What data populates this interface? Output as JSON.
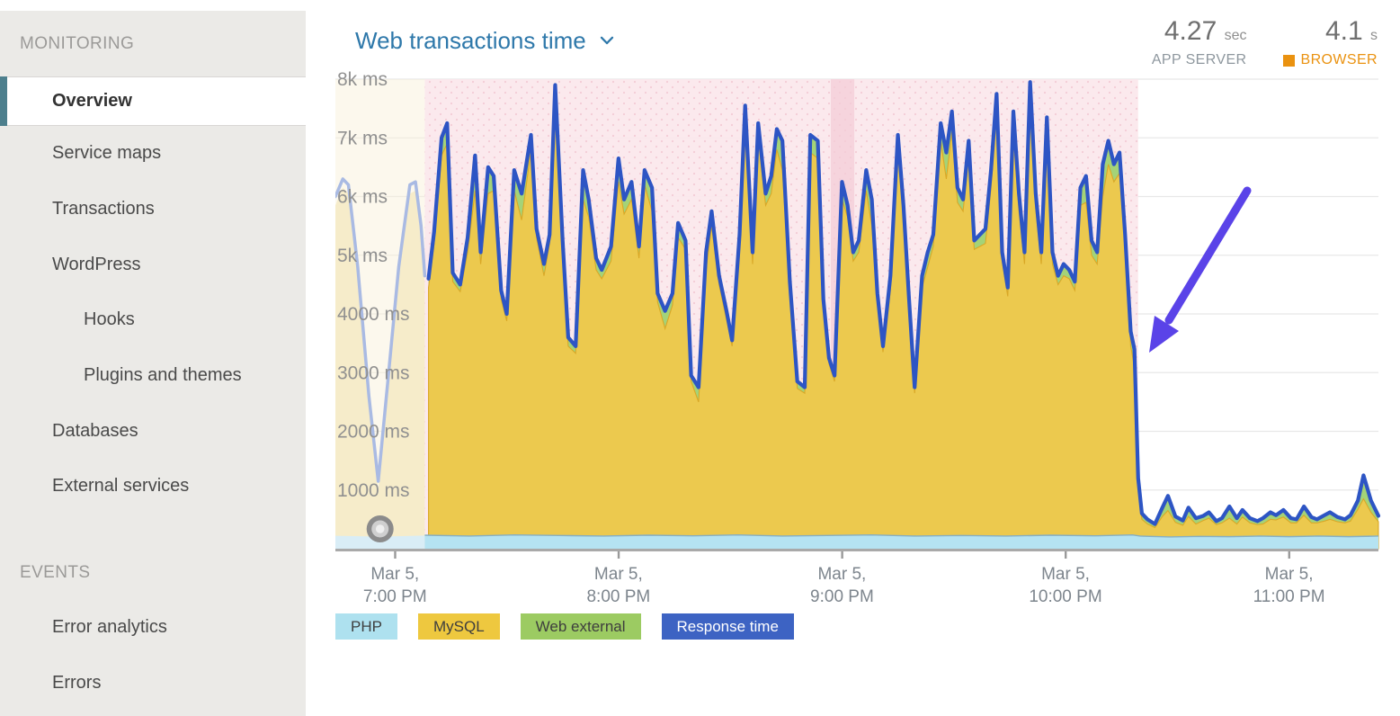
{
  "sidebar": {
    "sections": [
      {
        "header": "MONITORING",
        "items": [
          {
            "label": "Overview",
            "active": true
          },
          {
            "label": "Service maps"
          },
          {
            "label": "Transactions"
          },
          {
            "label": "WordPress"
          },
          {
            "label": "Hooks",
            "sub": true
          },
          {
            "label": "Plugins and themes",
            "sub": true
          },
          {
            "label": "Databases"
          },
          {
            "label": "External services"
          }
        ]
      },
      {
        "header": "EVENTS",
        "items": [
          {
            "label": "Error analytics"
          },
          {
            "label": "Errors"
          }
        ]
      }
    ]
  },
  "header": {
    "title": "Web transactions time",
    "app_server": {
      "value": "4.27",
      "unit": "sec",
      "label": "APP SERVER"
    },
    "browser": {
      "value": "4.1",
      "unit": "s",
      "label": "BROWSER",
      "swatch_color": "#ea9210"
    }
  },
  "legend": {
    "items": [
      {
        "label": "PHP",
        "color": "#aee1ef"
      },
      {
        "label": "MySQL",
        "color": "#eec83f"
      },
      {
        "label": "Web external",
        "color": "#9ccb62"
      },
      {
        "label": "Response time",
        "color": "#3d63c3"
      }
    ]
  },
  "chart_data": {
    "type": "area",
    "title": "Web transactions time",
    "unit": "ms",
    "ylim": [
      0,
      8000
    ],
    "grid": true,
    "legend_position": "bottom",
    "y_ticks": [
      {
        "value": 8000,
        "label": "8k ms"
      },
      {
        "value": 7000,
        "label": "7k ms"
      },
      {
        "value": 6000,
        "label": "6k ms"
      },
      {
        "value": 5000,
        "label": "5k ms"
      },
      {
        "value": 4000,
        "label": "4000 ms"
      },
      {
        "value": 3000,
        "label": "3000 ms"
      },
      {
        "value": 2000,
        "label": "2000 ms"
      },
      {
        "value": 1000,
        "label": "1000 ms"
      }
    ],
    "x_range_minutes": [
      0,
      280
    ],
    "x_ticks": [
      {
        "t": 16,
        "line1": "Mar 5,",
        "line2": "7:00 PM"
      },
      {
        "t": 76,
        "line1": "Mar 5,",
        "line2": "8:00 PM"
      },
      {
        "t": 136,
        "line1": "Mar 5,",
        "line2": "9:00 PM"
      },
      {
        "t": 196,
        "line1": "Mar 5,",
        "line2": "10:00 PM"
      },
      {
        "t": 256,
        "line1": "Mar 5,",
        "line2": "11:00 PM"
      }
    ],
    "colors": {
      "php": "#b5e3f2",
      "php_edge": "#86afc4",
      "mysql": "#ecc94e",
      "mysql_edge": "#d9a827",
      "web_external": "#a4d378",
      "response_time": "#2d55c4",
      "pink_region": "#fbe7ec",
      "dark_pink_band": "#f6d4dd",
      "pink_dots": "#f3ccd6",
      "faded_region": "#f9efd8",
      "faded_yellow": "#f6ecca",
      "faded_line": "#a9bae3",
      "faded_php": "#d9edf6",
      "gridline": "#e8e8e8",
      "axis": "#a9a9a9",
      "arrow": "#5a43e8"
    },
    "regions": {
      "faded_preview": [
        0,
        24
      ],
      "pink_highlight": [
        24,
        215.5
      ],
      "dark_pink_band": [
        133,
        139.3
      ]
    },
    "faded_points": [
      [
        0,
        6000
      ],
      [
        2,
        6300
      ],
      [
        3.5,
        6200
      ],
      [
        6,
        4800
      ],
      [
        9,
        2600
      ],
      [
        11.5,
        1150
      ],
      [
        14,
        2800
      ],
      [
        17,
        4800
      ],
      [
        20,
        6200
      ],
      [
        21.5,
        6250
      ],
      [
        23,
        5500
      ],
      [
        24,
        4650
      ]
    ],
    "faded_php": [
      [
        0,
        220
      ],
      [
        12,
        205
      ],
      [
        24,
        225
      ]
    ],
    "php_points": [
      [
        24,
        230
      ],
      [
        36,
        215
      ],
      [
        48,
        235
      ],
      [
        60,
        225
      ],
      [
        72,
        215
      ],
      [
        84,
        230
      ],
      [
        96,
        220
      ],
      [
        108,
        235
      ],
      [
        120,
        215
      ],
      [
        132,
        225
      ],
      [
        144,
        235
      ],
      [
        156,
        215
      ],
      [
        168,
        225
      ],
      [
        180,
        215
      ],
      [
        192,
        230
      ],
      [
        204,
        220
      ],
      [
        214,
        235
      ],
      [
        216,
        215
      ],
      [
        224,
        200
      ],
      [
        232,
        210
      ],
      [
        240,
        205
      ],
      [
        248,
        215
      ],
      [
        256,
        205
      ],
      [
        264,
        215
      ],
      [
        272,
        205
      ],
      [
        280,
        215
      ]
    ],
    "main_points": [
      [
        25,
        4600,
        150
      ],
      [
        26.5,
        5400,
        200
      ],
      [
        28.5,
        7000,
        300
      ],
      [
        30,
        7250,
        350
      ],
      [
        31.5,
        4700,
        150
      ],
      [
        33.5,
        4500,
        120
      ],
      [
        35.5,
        5300,
        250
      ],
      [
        37.5,
        6700,
        600
      ],
      [
        39,
        5050,
        200
      ],
      [
        41,
        6500,
        450
      ],
      [
        42.5,
        6350,
        250
      ],
      [
        44.5,
        4400,
        150
      ],
      [
        46,
        4000,
        120
      ],
      [
        48,
        6450,
        350
      ],
      [
        50,
        6050,
        450
      ],
      [
        52.5,
        7050,
        250
      ],
      [
        54,
        5450,
        150
      ],
      [
        56,
        4850,
        200
      ],
      [
        57.5,
        5350,
        150
      ],
      [
        59,
        7900,
        250
      ],
      [
        61,
        5250,
        200
      ],
      [
        62.5,
        3600,
        150
      ],
      [
        64.5,
        3450,
        120
      ],
      [
        66.5,
        6450,
        500
      ],
      [
        68,
        5950,
        300
      ],
      [
        70,
        4950,
        200
      ],
      [
        71.5,
        4750,
        150
      ],
      [
        74,
        5150,
        250
      ],
      [
        76,
        6650,
        400
      ],
      [
        77.5,
        5950,
        250
      ],
      [
        79.5,
        6250,
        300
      ],
      [
        81.5,
        5150,
        200
      ],
      [
        83,
        6450,
        250
      ],
      [
        85,
        6150,
        400
      ],
      [
        86.5,
        4350,
        150
      ],
      [
        88.5,
        4050,
        300
      ],
      [
        90.5,
        4350,
        200
      ],
      [
        92,
        5550,
        250
      ],
      [
        94,
        5250,
        150
      ],
      [
        95.5,
        2950,
        100
      ],
      [
        97.5,
        2750,
        250
      ],
      [
        99.5,
        5050,
        300
      ],
      [
        101,
        5750,
        250
      ],
      [
        103,
        4650,
        150
      ],
      [
        105,
        4050,
        150
      ],
      [
        106.5,
        3550,
        100
      ],
      [
        108.5,
        5350,
        250
      ],
      [
        110,
        7550,
        300
      ],
      [
        112,
        5050,
        200
      ],
      [
        113.5,
        7250,
        250
      ],
      [
        115.5,
        6050,
        200
      ],
      [
        117,
        6350,
        300
      ],
      [
        118.5,
        7150,
        350
      ],
      [
        120,
        6950,
        500
      ],
      [
        122,
        4550,
        150
      ],
      [
        124,
        2850,
        120
      ],
      [
        126,
        2750,
        100
      ],
      [
        127.5,
        7050,
        300
      ],
      [
        129.5,
        6950,
        300
      ],
      [
        131,
        4250,
        150
      ],
      [
        132.5,
        3250,
        100
      ],
      [
        134,
        2950,
        100
      ],
      [
        136,
        6250,
        300
      ],
      [
        137.5,
        5850,
        200
      ],
      [
        139,
        5050,
        150
      ],
      [
        140.5,
        5250,
        200
      ],
      [
        142.5,
        6450,
        350
      ],
      [
        144,
        5950,
        450
      ],
      [
        145.5,
        4350,
        150
      ],
      [
        147,
        3450,
        100
      ],
      [
        149,
        4650,
        250
      ],
      [
        151,
        7050,
        300
      ],
      [
        152.5,
        5850,
        200
      ],
      [
        154,
        4250,
        150
      ],
      [
        155.5,
        2750,
        100
      ],
      [
        157.5,
        4650,
        200
      ],
      [
        159,
        5050,
        250
      ],
      [
        160.5,
        5350,
        200
      ],
      [
        162.5,
        7250,
        300
      ],
      [
        164,
        6750,
        450
      ],
      [
        165.5,
        7450,
        350
      ],
      [
        167,
        6150,
        250
      ],
      [
        168.5,
        5950,
        200
      ],
      [
        170,
        6950,
        300
      ],
      [
        171.5,
        5250,
        150
      ],
      [
        173,
        5350,
        200
      ],
      [
        174.5,
        5450,
        250
      ],
      [
        176,
        6450,
        300
      ],
      [
        177.5,
        7750,
        300
      ],
      [
        179,
        5050,
        150
      ],
      [
        180.5,
        4450,
        150
      ],
      [
        182,
        7450,
        400
      ],
      [
        183.5,
        6050,
        300
      ],
      [
        185,
        5050,
        200
      ],
      [
        186.5,
        7950,
        300
      ],
      [
        188,
        6050,
        250
      ],
      [
        189.5,
        5050,
        200
      ],
      [
        191,
        7350,
        300
      ],
      [
        192.5,
        5050,
        200
      ],
      [
        194,
        4650,
        150
      ],
      [
        195.5,
        4850,
        200
      ],
      [
        197,
        4750,
        150
      ],
      [
        198.5,
        4550,
        150
      ],
      [
        200,
        6150,
        300
      ],
      [
        201.5,
        6350,
        450
      ],
      [
        203,
        5250,
        250
      ],
      [
        204.5,
        5050,
        200
      ],
      [
        206,
        6550,
        550
      ],
      [
        207.5,
        6950,
        400
      ],
      [
        209,
        6550,
        300
      ],
      [
        210.5,
        6750,
        350
      ],
      [
        212,
        5350,
        200
      ],
      [
        213.5,
        3700,
        250
      ],
      [
        214.5,
        3400,
        300
      ],
      [
        215.5,
        1200,
        150
      ],
      [
        216.5,
        600,
        100
      ],
      [
        218,
        500,
        80
      ],
      [
        220,
        420,
        60
      ],
      [
        222,
        700,
        150
      ],
      [
        223.5,
        900,
        250
      ],
      [
        225.5,
        550,
        100
      ],
      [
        227.5,
        480,
        80
      ],
      [
        229,
        700,
        150
      ],
      [
        231,
        520,
        100
      ],
      [
        233,
        560,
        80
      ],
      [
        234.5,
        620,
        100
      ],
      [
        236.5,
        470,
        60
      ],
      [
        238,
        520,
        80
      ],
      [
        240,
        720,
        200
      ],
      [
        242,
        520,
        100
      ],
      [
        243.5,
        660,
        120
      ],
      [
        245.5,
        520,
        80
      ],
      [
        247.5,
        470,
        60
      ],
      [
        249,
        520,
        100
      ],
      [
        251,
        620,
        120
      ],
      [
        252.5,
        570,
        80
      ],
      [
        254.5,
        660,
        120
      ],
      [
        256.5,
        520,
        80
      ],
      [
        258,
        500,
        60
      ],
      [
        260,
        720,
        150
      ],
      [
        262,
        540,
        100
      ],
      [
        263.5,
        500,
        60
      ],
      [
        265.5,
        570,
        100
      ],
      [
        267,
        620,
        120
      ],
      [
        269,
        540,
        80
      ],
      [
        271,
        500,
        60
      ],
      [
        272.5,
        570,
        100
      ],
      [
        274.5,
        820,
        150
      ],
      [
        276,
        1250,
        400
      ],
      [
        278,
        820,
        200
      ],
      [
        280,
        560,
        100
      ]
    ]
  }
}
